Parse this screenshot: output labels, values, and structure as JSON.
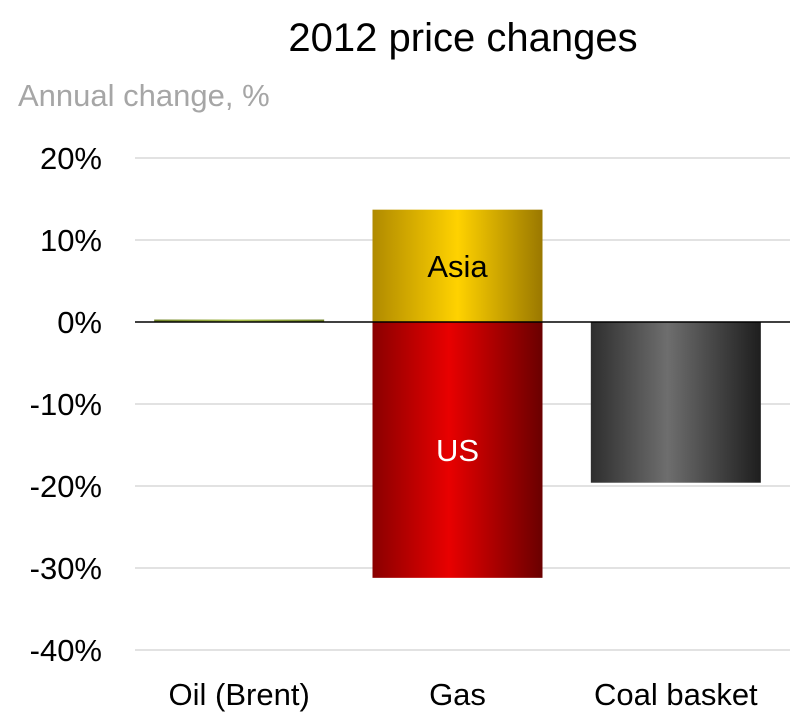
{
  "chart_data": {
    "type": "bar",
    "title": "2012 price changes",
    "ylabel": "Annual change, %",
    "xlabel": "",
    "ylim": [
      -40,
      20
    ],
    "yticks": [
      20,
      10,
      0,
      -10,
      -20,
      -30,
      -40
    ],
    "ytick_labels": [
      "20%",
      "10%",
      "0%",
      "-10%",
      "-20%",
      "-30%",
      "-40%"
    ],
    "grid": true,
    "categories": [
      "Oil (Brent)",
      "Gas",
      "Coal basket"
    ],
    "bars": [
      {
        "category": "Oil (Brent)",
        "segments": [
          {
            "label": "",
            "value": 0.3,
            "color": "#8ea33a"
          }
        ]
      },
      {
        "category": "Gas",
        "segments": [
          {
            "label": "Asia",
            "value": 13.7,
            "color": "#f5c400",
            "label_color": "#000000"
          },
          {
            "label": "US",
            "value": -31.2,
            "color": "#e00000",
            "label_color": "#ffffff"
          }
        ]
      },
      {
        "category": "Coal basket",
        "segments": [
          {
            "label": "",
            "value": -19.6,
            "color": "#555555"
          }
        ]
      }
    ]
  }
}
